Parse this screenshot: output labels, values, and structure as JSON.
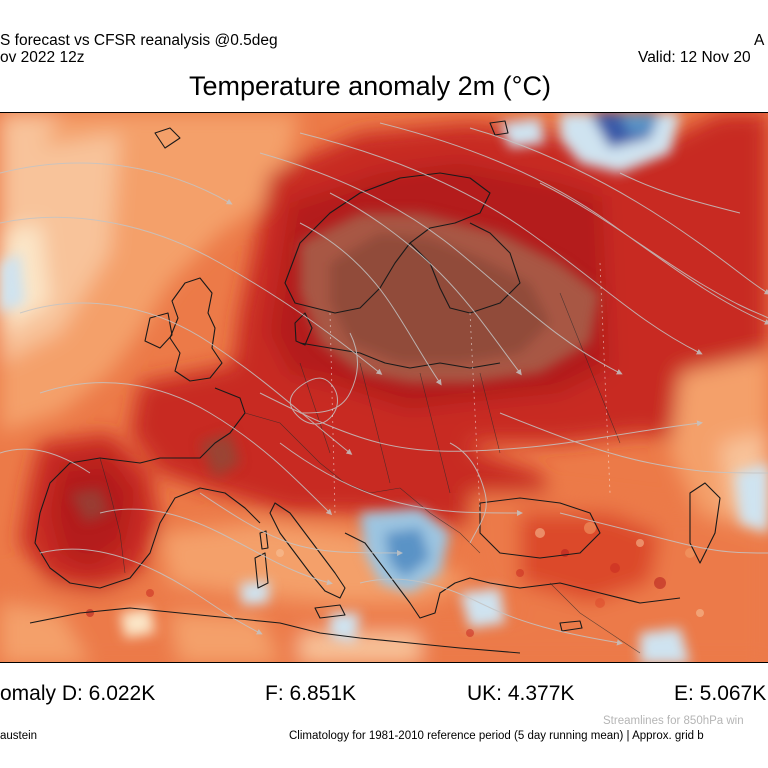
{
  "header": {
    "model_line": "S forecast vs CFSR reanalysis @0.5deg",
    "run_line": "ov 2022 12z",
    "right_top": "A",
    "valid_line": "Valid: 12 Nov 20"
  },
  "title": "Temperature anomaly 2m (°C)",
  "stats": [
    {
      "text": "omaly D: 6.022K"
    },
    {
      "text": "F: 6.851K"
    },
    {
      "text": "UK: 4.377K"
    },
    {
      "text": "E: 5.067K"
    }
  ],
  "footer": {
    "stream_note": "Streamlines for 850hPa win",
    "author": "austein",
    "climatology": "Climatology for 1981-2010 reference period (5 day running mean) | Approx. grid b"
  },
  "map": {
    "colors": {
      "deep_brown": "#8e4a3a",
      "brown": "#a85b46",
      "dark_red": "#b41e1e",
      "red": "#c82a22",
      "red_orange": "#dc4a2c",
      "orange": "#ec7a48",
      "light_orange": "#f4a06a",
      "peach": "#f8c39a",
      "cream": "#fbe6c8",
      "pale_blue": "#cfe3f0",
      "light_blue": "#9cc5e1",
      "blue": "#5a93c6",
      "deep_blue": "#3a5aa8",
      "coastline": "#1a1a1a",
      "streamline": "#bdbdbd"
    }
  }
}
